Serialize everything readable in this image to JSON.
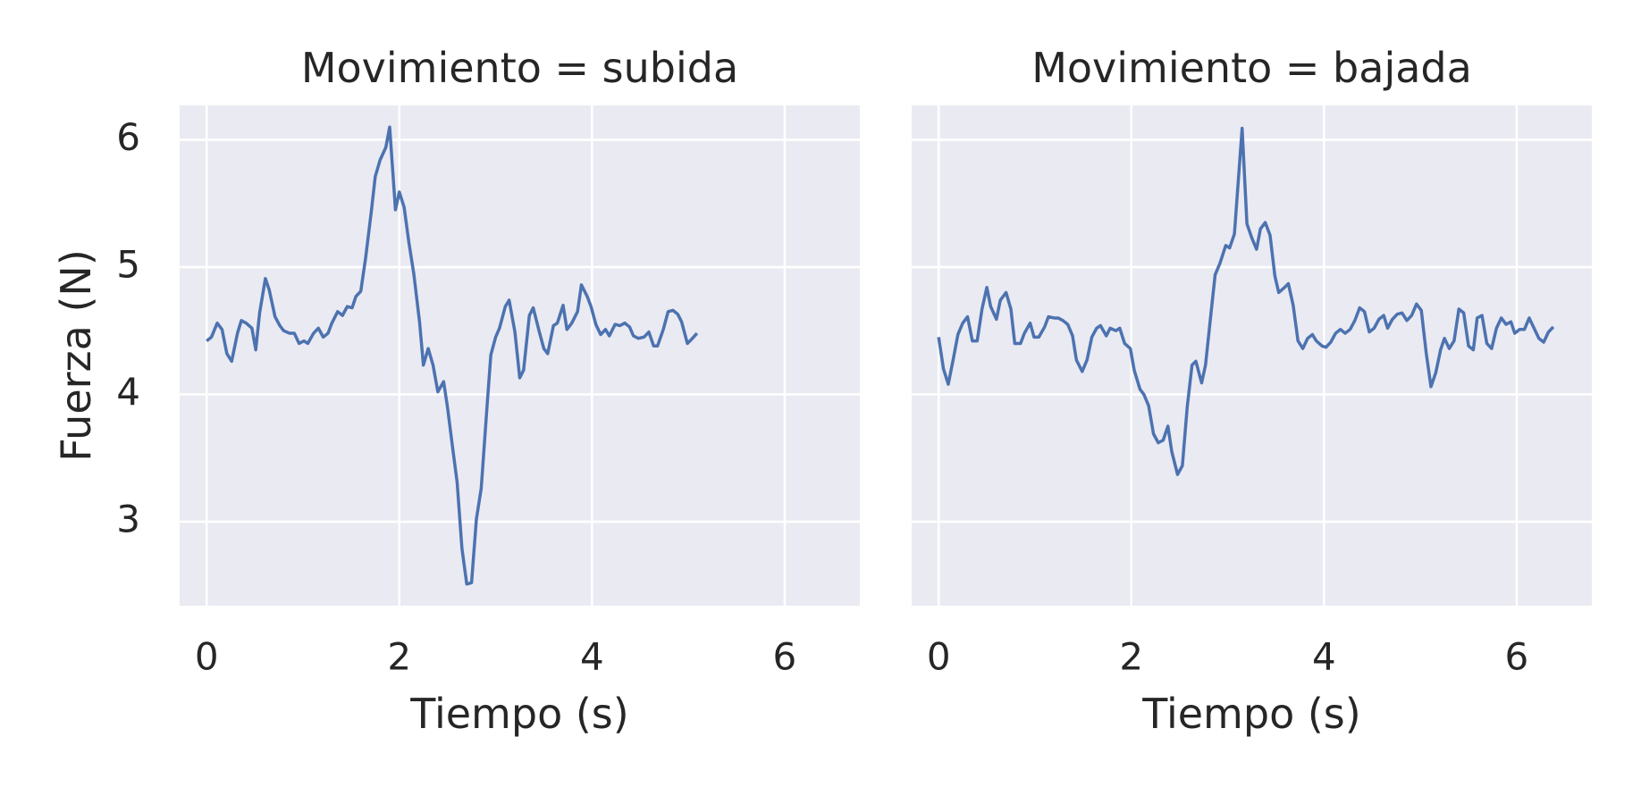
{
  "chart_data": [
    {
      "type": "line",
      "title": "Movimiento = subida",
      "xlabel": "Tiempo (s)",
      "ylabel": "Fuerza (N)",
      "xlim": [
        -0.28,
        6.78
      ],
      "ylim": [
        2.34,
        6.27
      ],
      "xticks": [
        0,
        2,
        4,
        6
      ],
      "yticks": [
        3,
        4,
        5,
        6
      ],
      "grid": true,
      "color": "#4c72b0",
      "x": [
        0,
        0.05,
        0.11,
        0.16,
        0.21,
        0.26,
        0.32,
        0.36,
        0.41,
        0.47,
        0.51,
        0.55,
        0.61,
        0.65,
        0.71,
        0.76,
        0.8,
        0.86,
        0.91,
        0.96,
        1.01,
        1.05,
        1.11,
        1.16,
        1.21,
        1.26,
        1.3,
        1.36,
        1.41,
        1.46,
        1.51,
        1.55,
        1.6,
        1.65,
        1.71,
        1.75,
        1.8,
        1.86,
        1.9,
        1.96,
        2.0,
        2.05,
        2.1,
        2.15,
        2.21,
        2.25,
        2.3,
        2.35,
        2.4,
        2.46,
        2.5,
        2.55,
        2.6,
        2.65,
        2.7,
        2.75,
        2.8,
        2.85,
        2.91,
        2.95,
        3.0,
        3.04,
        3.1,
        3.14,
        3.2,
        3.25,
        3.29,
        3.35,
        3.39,
        3.45,
        3.5,
        3.54,
        3.6,
        3.64,
        3.7,
        3.74,
        3.79,
        3.85,
        3.89,
        3.95,
        3.99,
        4.04,
        4.09,
        4.14,
        4.18,
        4.24,
        4.29,
        4.34,
        4.39,
        4.43,
        4.48,
        4.54,
        4.59,
        4.64,
        4.68,
        4.74,
        4.79,
        4.84,
        4.89,
        4.93,
        4.99,
        5.03,
        5.09
      ],
      "values": [
        4.42,
        4.45,
        4.56,
        4.51,
        4.32,
        4.26,
        4.48,
        4.58,
        4.56,
        4.52,
        4.35,
        4.64,
        4.91,
        4.82,
        4.61,
        4.54,
        4.5,
        4.48,
        4.48,
        4.4,
        4.42,
        4.4,
        4.48,
        4.52,
        4.45,
        4.48,
        4.56,
        4.65,
        4.62,
        4.69,
        4.68,
        4.77,
        4.81,
        5.07,
        5.44,
        5.71,
        5.84,
        5.94,
        6.1,
        5.45,
        5.59,
        5.47,
        5.19,
        4.95,
        4.57,
        4.23,
        4.36,
        4.23,
        4.02,
        4.1,
        3.9,
        3.6,
        3.31,
        2.79,
        2.51,
        2.52,
        3.02,
        3.26,
        3.9,
        4.31,
        4.45,
        4.52,
        4.69,
        4.74,
        4.49,
        4.13,
        4.19,
        4.62,
        4.68,
        4.5,
        4.36,
        4.32,
        4.54,
        4.56,
        4.7,
        4.51,
        4.56,
        4.65,
        4.86,
        4.77,
        4.69,
        4.55,
        4.47,
        4.51,
        4.46,
        4.55,
        4.54,
        4.56,
        4.53,
        4.46,
        4.44,
        4.45,
        4.49,
        4.38,
        4.38,
        4.51,
        4.65,
        4.66,
        4.63,
        4.57,
        4.4,
        4.43,
        4.48
      ]
    },
    {
      "type": "line",
      "title": "Movimiento = bajada",
      "xlabel": "Tiempo (s)",
      "xlim": [
        -0.28,
        6.78
      ],
      "ylim": [
        2.34,
        6.27
      ],
      "xticks": [
        0,
        2,
        4,
        6
      ],
      "yticks": [
        3,
        4,
        5,
        6
      ],
      "grid": true,
      "color": "#4c72b0",
      "x": [
        0,
        0.05,
        0.1,
        0.15,
        0.2,
        0.25,
        0.3,
        0.35,
        0.4,
        0.45,
        0.5,
        0.54,
        0.6,
        0.64,
        0.7,
        0.75,
        0.79,
        0.85,
        0.89,
        0.95,
        0.99,
        1.04,
        1.1,
        1.14,
        1.2,
        1.24,
        1.29,
        1.34,
        1.39,
        1.43,
        1.49,
        1.54,
        1.59,
        1.64,
        1.68,
        1.74,
        1.78,
        1.84,
        1.88,
        1.93,
        1.99,
        2.03,
        2.09,
        2.13,
        2.18,
        2.23,
        2.28,
        2.33,
        2.38,
        2.42,
        2.48,
        2.53,
        2.58,
        2.63,
        2.67,
        2.73,
        2.77,
        2.83,
        2.87,
        2.92,
        2.98,
        3.02,
        3.07,
        3.15,
        3.2,
        3.25,
        3.3,
        3.34,
        3.39,
        3.44,
        3.49,
        3.53,
        3.59,
        3.63,
        3.68,
        3.73,
        3.78,
        3.83,
        3.88,
        3.92,
        3.98,
        4.02,
        4.07,
        4.12,
        4.17,
        4.22,
        4.27,
        4.32,
        4.37,
        4.42,
        4.47,
        4.52,
        4.57,
        4.62,
        4.66,
        4.71,
        4.76,
        4.81,
        4.86,
        4.91,
        4.96,
        5.01,
        5.06,
        5.11,
        5.16,
        5.21,
        5.25,
        5.3,
        5.35,
        5.4,
        5.45,
        5.5,
        5.55,
        5.59,
        5.64,
        5.69,
        5.74,
        5.79,
        5.84,
        5.89,
        5.94,
        5.98,
        6.03,
        6.08,
        6.13,
        6.18,
        6.23,
        6.28,
        6.33,
        6.38
      ],
      "values": [
        4.45,
        4.2,
        4.08,
        4.27,
        4.47,
        4.56,
        4.61,
        4.42,
        4.42,
        4.67,
        4.84,
        4.69,
        4.59,
        4.74,
        4.8,
        4.67,
        4.4,
        4.4,
        4.48,
        4.56,
        4.45,
        4.45,
        4.53,
        4.61,
        4.6,
        4.6,
        4.58,
        4.55,
        4.46,
        4.27,
        4.18,
        4.27,
        4.45,
        4.52,
        4.54,
        4.46,
        4.52,
        4.5,
        4.52,
        4.4,
        4.36,
        4.19,
        4.04,
        4.0,
        3.91,
        3.69,
        3.62,
        3.64,
        3.75,
        3.55,
        3.37,
        3.44,
        3.9,
        4.23,
        4.26,
        4.09,
        4.23,
        4.66,
        4.94,
        5.03,
        5.17,
        5.15,
        5.26,
        6.09,
        5.34,
        5.23,
        5.14,
        5.3,
        5.35,
        5.25,
        4.93,
        4.8,
        4.84,
        4.87,
        4.7,
        4.42,
        4.36,
        4.44,
        4.47,
        4.42,
        4.38,
        4.37,
        4.41,
        4.48,
        4.51,
        4.48,
        4.51,
        4.58,
        4.68,
        4.65,
        4.49,
        4.52,
        4.59,
        4.62,
        4.52,
        4.59,
        4.63,
        4.64,
        4.58,
        4.62,
        4.71,
        4.66,
        4.33,
        4.06,
        4.17,
        4.35,
        4.44,
        4.36,
        4.42,
        4.67,
        4.64,
        4.38,
        4.35,
        4.6,
        4.62,
        4.4,
        4.36,
        4.52,
        4.6,
        4.55,
        4.57,
        4.48,
        4.51,
        4.51,
        4.6,
        4.52,
        4.44,
        4.41,
        4.49,
        4.53
      ]
    }
  ]
}
